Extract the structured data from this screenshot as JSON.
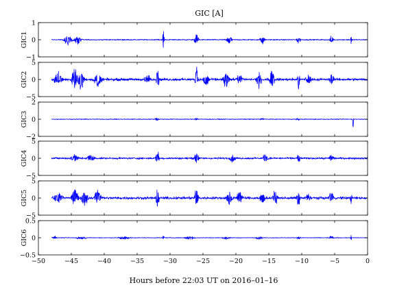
{
  "figure": {
    "title": "GIC [A]",
    "xlabel": "Hours before  22:03 UT on 2016–01–16"
  },
  "chart_data": {
    "type": "line",
    "title": "GIC [A]",
    "xlabel": "Hours before  22:03 UT on 2016–01–16",
    "xlim": [
      -50,
      0
    ],
    "xticks": [
      -50,
      -45,
      -40,
      -35,
      -30,
      -25,
      -20,
      -15,
      -10,
      -5,
      0
    ],
    "xtick_labels": [
      "−50",
      "−45",
      "−40",
      "−35",
      "−30",
      "−25",
      "−20",
      "−15",
      "−10",
      "−5",
      "0"
    ],
    "data_start_hour": -48,
    "line_color": "#0000ff",
    "panels": [
      {
        "name": "GIC1",
        "ylabel": "GIC1",
        "ylim": [
          -1,
          1
        ],
        "yticks": [
          -1,
          0,
          1
        ],
        "ytick_labels": [
          "−1",
          "0",
          "1"
        ],
        "noise": 0.02,
        "events": [
          {
            "x": -45.5,
            "y": -0.3,
            "w": 0.9
          },
          {
            "x": -44.0,
            "y": -0.25,
            "w": 0.8
          },
          {
            "x": -31.0,
            "y": 0.8,
            "w": 0.15
          },
          {
            "x": -26.0,
            "y": 0.3,
            "w": 0.5
          },
          {
            "x": -21.0,
            "y": -0.25,
            "w": 0.6
          },
          {
            "x": -16.0,
            "y": -0.3,
            "w": 0.5
          },
          {
            "x": -10.5,
            "y": -0.2,
            "w": 0.5
          },
          {
            "x": -5.5,
            "y": 0.25,
            "w": 0.4
          },
          {
            "x": -2.5,
            "y": -0.4,
            "w": 0.1
          }
        ]
      },
      {
        "name": "GIC2",
        "ylabel": "GIC2",
        "ylim": [
          -5,
          5
        ],
        "yticks": [
          -5,
          0,
          5
        ],
        "ytick_labels": [
          "−5",
          "0",
          "5"
        ],
        "noise": 0.25,
        "events": [
          {
            "x": -47.0,
            "y": 2.0,
            "w": 1.0
          },
          {
            "x": -44.5,
            "y": 3.5,
            "w": 0.7
          },
          {
            "x": -43.5,
            "y": -3.0,
            "w": 0.7
          },
          {
            "x": -41.0,
            "y": -2.0,
            "w": 0.8
          },
          {
            "x": -33.5,
            "y": 1.5,
            "w": 0.6
          },
          {
            "x": -32.0,
            "y": 3.8,
            "w": 0.15
          },
          {
            "x": -31.8,
            "y": -3.5,
            "w": 0.15
          },
          {
            "x": -26.0,
            "y": 4.0,
            "w": 0.3
          },
          {
            "x": -24.5,
            "y": -2.0,
            "w": 0.6
          },
          {
            "x": -21.5,
            "y": -2.5,
            "w": 0.6
          },
          {
            "x": -19.5,
            "y": 1.8,
            "w": 0.6
          },
          {
            "x": -16.5,
            "y": -2.5,
            "w": 0.5
          },
          {
            "x": -14.5,
            "y": 3.0,
            "w": 0.5
          },
          {
            "x": -10.5,
            "y": -2.5,
            "w": 0.3
          },
          {
            "x": -9.0,
            "y": 1.5,
            "w": 0.5
          },
          {
            "x": -5.5,
            "y": 1.8,
            "w": 0.5
          }
        ]
      },
      {
        "name": "GIC3",
        "ylabel": "GIC3",
        "ylim": [
          -2,
          2
        ],
        "yticks": [
          -2,
          0,
          2
        ],
        "ytick_labels": [
          "−2",
          "0",
          "2"
        ],
        "noise": 0.03,
        "events": [
          {
            "x": -32.0,
            "y": 0.2,
            "w": 0.4
          },
          {
            "x": -26.0,
            "y": 0.15,
            "w": 0.4
          },
          {
            "x": -16.0,
            "y": 0.15,
            "w": 0.4
          },
          {
            "x": -10.5,
            "y": -0.15,
            "w": 0.4
          },
          {
            "x": -2.2,
            "y": -0.9,
            "w": 0.1
          }
        ]
      },
      {
        "name": "GIC4",
        "ylabel": "GIC4",
        "ylim": [
          -5,
          5
        ],
        "yticks": [
          -5,
          0,
          5
        ],
        "ytick_labels": [
          "−5",
          "0",
          "5"
        ],
        "noise": 0.18,
        "events": [
          {
            "x": -44.5,
            "y": 1.2,
            "w": 0.8
          },
          {
            "x": -42.0,
            "y": 1.0,
            "w": 0.8
          },
          {
            "x": -32.0,
            "y": 2.3,
            "w": 0.3
          },
          {
            "x": -31.8,
            "y": -2.0,
            "w": 0.2
          },
          {
            "x": -26.0,
            "y": 1.5,
            "w": 0.5
          },
          {
            "x": -20.5,
            "y": -1.2,
            "w": 0.6
          },
          {
            "x": -15.5,
            "y": 1.0,
            "w": 0.6
          },
          {
            "x": -10.5,
            "y": -1.5,
            "w": 0.3
          },
          {
            "x": -5.5,
            "y": 1.0,
            "w": 0.5
          }
        ]
      },
      {
        "name": "GIC5",
        "ylabel": "GIC5",
        "ylim": [
          -5,
          5
        ],
        "yticks": [
          -5,
          0,
          5
        ],
        "ytick_labels": [
          "−5",
          "0",
          "5"
        ],
        "noise": 0.25,
        "events": [
          {
            "x": -47.0,
            "y": 1.5,
            "w": 1.0
          },
          {
            "x": -44.5,
            "y": 3.0,
            "w": 0.7
          },
          {
            "x": -43.0,
            "y": -2.5,
            "w": 0.7
          },
          {
            "x": -41.0,
            "y": 2.0,
            "w": 0.8
          },
          {
            "x": -32.0,
            "y": 3.5,
            "w": 0.2
          },
          {
            "x": -31.8,
            "y": -3.8,
            "w": 0.15
          },
          {
            "x": -26.0,
            "y": 3.0,
            "w": 0.4
          },
          {
            "x": -21.0,
            "y": -2.5,
            "w": 0.6
          },
          {
            "x": -19.5,
            "y": 2.0,
            "w": 0.6
          },
          {
            "x": -16.0,
            "y": -2.0,
            "w": 0.5
          },
          {
            "x": -14.0,
            "y": 2.5,
            "w": 0.5
          },
          {
            "x": -10.5,
            "y": -3.0,
            "w": 0.3
          },
          {
            "x": -9.0,
            "y": 1.5,
            "w": 0.5
          },
          {
            "x": -5.5,
            "y": 1.8,
            "w": 0.5
          },
          {
            "x": -2.5,
            "y": -1.5,
            "w": 0.2
          }
        ]
      },
      {
        "name": "GIC6",
        "ylabel": "GIC6",
        "ylim": [
          -0.5,
          0.5
        ],
        "yticks": [
          -0.5,
          0,
          0.5
        ],
        "ytick_labels": [
          "−0.5",
          "0",
          "0.5"
        ],
        "noise": 0.006,
        "events": [
          {
            "x": -47.5,
            "y": 0.05,
            "w": 0.5
          },
          {
            "x": -43.5,
            "y": -0.05,
            "w": 1.0
          },
          {
            "x": -37.0,
            "y": -0.05,
            "w": 1.2
          },
          {
            "x": -31.0,
            "y": 0.08,
            "w": 0.2
          },
          {
            "x": -27.0,
            "y": -0.06,
            "w": 1.0
          },
          {
            "x": -21.5,
            "y": -0.04,
            "w": 0.8
          },
          {
            "x": -16.5,
            "y": -0.04,
            "w": 0.8
          },
          {
            "x": -10.5,
            "y": -0.05,
            "w": 0.4
          },
          {
            "x": -5.5,
            "y": 0.04,
            "w": 0.6
          },
          {
            "x": -2.5,
            "y": -0.12,
            "w": 0.1
          }
        ]
      }
    ]
  }
}
